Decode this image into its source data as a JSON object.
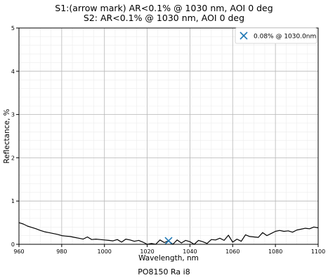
{
  "chart_data": {
    "type": "line",
    "title_lines": [
      "S1:(arrow mark) AR<0.1% @ 1030 nm, AOI 0 deg",
      "S2: AR<0.1% @ 1030 nm, AOI 0 deg"
    ],
    "xlabel": "Wavelength, nm",
    "ylabel": "Reflectance, %",
    "xlim": [
      960,
      1100
    ],
    "ylim": [
      0,
      5
    ],
    "xticks": [
      960,
      980,
      1000,
      1020,
      1040,
      1060,
      1080,
      1100
    ],
    "yticks": [
      0,
      1,
      2,
      3,
      4,
      5
    ],
    "grid": true,
    "minor_grid": true,
    "legend_position": "top-right",
    "footer": "PO8150 Ra i8",
    "series": [
      {
        "color": "#000000",
        "x": [
          960,
          962,
          964,
          966,
          968,
          970,
          972,
          974,
          976,
          978,
          980,
          982,
          984,
          986,
          988,
          990,
          992,
          994,
          996,
          998,
          1000,
          1002,
          1004,
          1006,
          1008,
          1010,
          1012,
          1014,
          1016,
          1018,
          1020,
          1022,
          1024,
          1026,
          1028,
          1030,
          1032,
          1034,
          1036,
          1038,
          1040,
          1042,
          1044,
          1046,
          1048,
          1050,
          1052,
          1054,
          1056,
          1058,
          1060,
          1062,
          1064,
          1066,
          1068,
          1070,
          1072,
          1074,
          1076,
          1078,
          1080,
          1082,
          1084,
          1086,
          1088,
          1090,
          1092,
          1094,
          1096,
          1098,
          1100
        ],
        "y": [
          0.5,
          0.47,
          0.42,
          0.39,
          0.36,
          0.32,
          0.29,
          0.27,
          0.25,
          0.23,
          0.2,
          0.19,
          0.18,
          0.16,
          0.14,
          0.12,
          0.17,
          0.11,
          0.12,
          0.11,
          0.1,
          0.09,
          0.08,
          0.11,
          0.05,
          0.12,
          0.1,
          0.07,
          0.09,
          0.05,
          0.0,
          0.02,
          0.0,
          0.1,
          0.04,
          0.08,
          0.0,
          0.1,
          0.03,
          0.09,
          0.06,
          0.0,
          0.09,
          0.06,
          0.02,
          0.11,
          0.1,
          0.14,
          0.09,
          0.21,
          0.05,
          0.12,
          0.07,
          0.22,
          0.18,
          0.17,
          0.16,
          0.27,
          0.2,
          0.25,
          0.3,
          0.32,
          0.3,
          0.31,
          0.28,
          0.33,
          0.35,
          0.37,
          0.36,
          0.4,
          0.38
        ]
      }
    ],
    "marker": {
      "x": 1030.0,
      "y": 0.08,
      "symbol": "x",
      "color": "#1f77b4",
      "label": "0.08% @ 1030.0nm"
    }
  }
}
